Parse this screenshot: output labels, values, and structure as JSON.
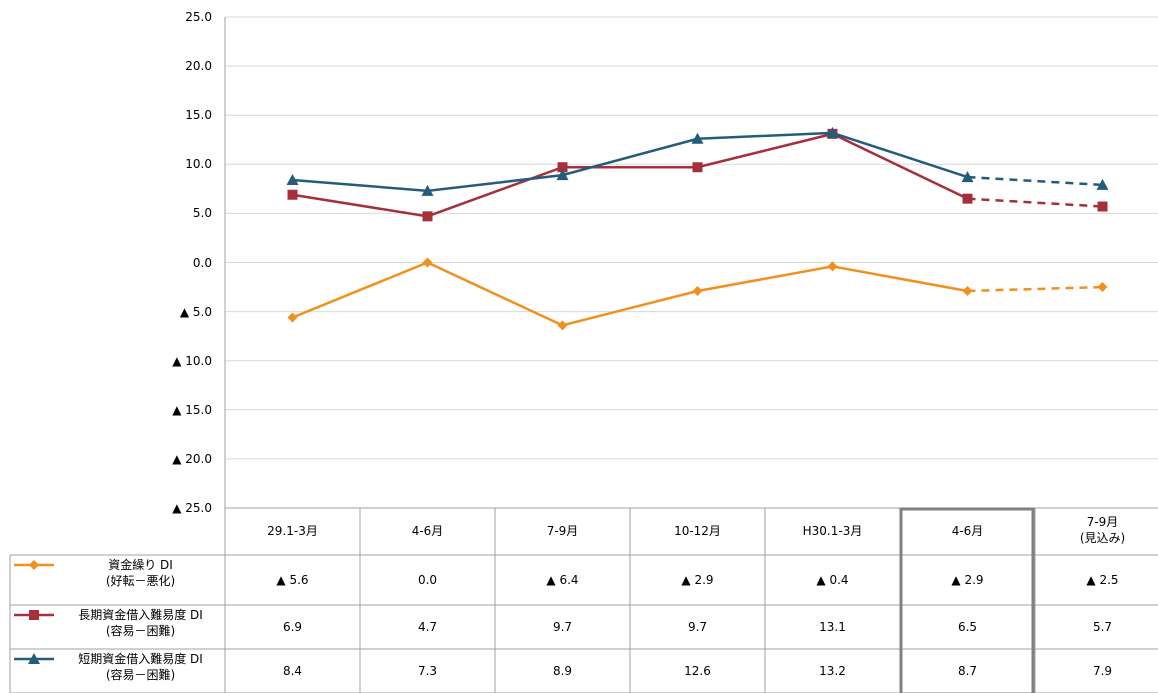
{
  "chart_data": {
    "type": "line",
    "categories": [
      "29.1-3月",
      "4-6月",
      "7-9月",
      "10-12月",
      "H30.1-3月",
      "4-6月",
      "7-9月\n(見込み)"
    ],
    "series": [
      {
        "name": "資金繰り DI\n(好転－悪化)",
        "color": "#f0901e",
        "marker": "diamond",
        "values": [
          -5.6,
          0.0,
          -6.4,
          -2.9,
          -0.4,
          -2.9,
          -2.5
        ],
        "value_labels": [
          "▲ 5.6",
          "0.0",
          "▲ 6.4",
          "▲ 2.9",
          "▲ 0.4",
          "▲ 2.9",
          "▲ 2.5"
        ]
      },
      {
        "name": "長期資金借入難易度 DI\n(容易－困難)",
        "color": "#a5303c",
        "marker": "square",
        "values": [
          6.9,
          4.7,
          9.7,
          9.7,
          13.1,
          6.5,
          5.7
        ]
      },
      {
        "name": "短期資金借入難易度 DI\n(容易－困難)",
        "color": "#245c7c",
        "marker": "triangle",
        "values": [
          8.4,
          7.3,
          8.9,
          12.6,
          13.2,
          8.7,
          7.9
        ]
      }
    ],
    "ylim": [
      -25,
      25
    ],
    "yticks": [
      {
        "value": 25,
        "label": "25.0"
      },
      {
        "value": 20,
        "label": "20.0"
      },
      {
        "value": 15,
        "label": "15.0"
      },
      {
        "value": 10,
        "label": "10.0"
      },
      {
        "value": 5,
        "label": "5.0"
      },
      {
        "value": 0,
        "label": "0.0"
      },
      {
        "value": -5,
        "label": "▲ 5.0"
      },
      {
        "value": -10,
        "label": "▲ 10.0"
      },
      {
        "value": -15,
        "label": "▲ 15.0"
      },
      {
        "value": -20,
        "label": "▲ 20.0"
      },
      {
        "value": -25,
        "label": "▲ 25.0"
      }
    ],
    "grid": true,
    "dashed_last_segment": true,
    "highlight_category": 5
  }
}
